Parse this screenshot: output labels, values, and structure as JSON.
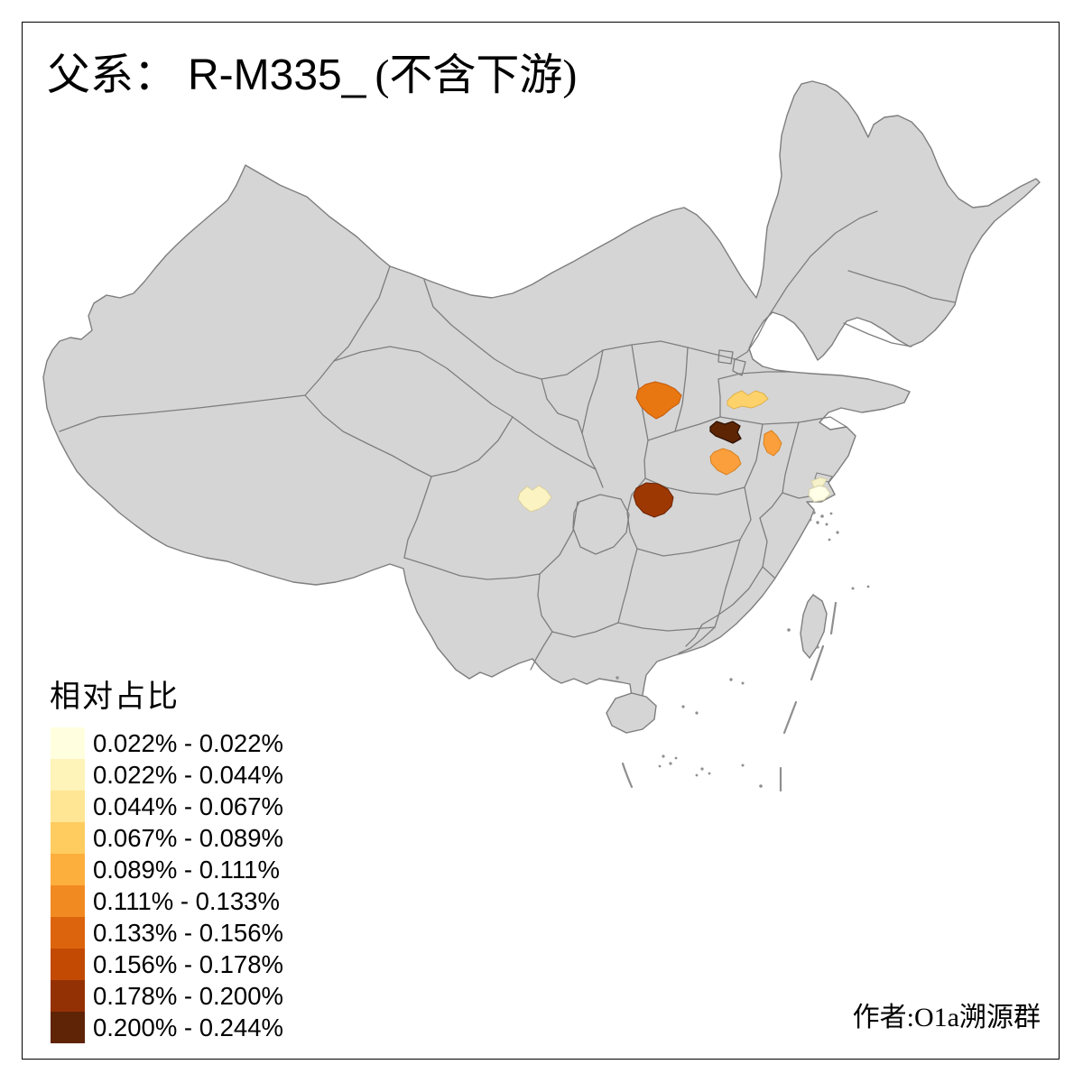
{
  "title": {
    "prefix": "父系：",
    "haplogroup": "R-M335_",
    "suffix": "(不含下游)",
    "full": "父系： R-M335_ (不含下游)"
  },
  "legend": {
    "title": "相对占比",
    "entries": [
      {
        "label": "0.022% - 0.022%",
        "color": "#FFFFE0"
      },
      {
        "label": "0.022% - 0.044%",
        "color": "#FEF3B8"
      },
      {
        "label": "0.044% - 0.067%",
        "color": "#FEE694"
      },
      {
        "label": "0.067% - 0.089%",
        "color": "#FECC5F"
      },
      {
        "label": "0.089% - 0.111%",
        "color": "#FDAF3D"
      },
      {
        "label": "0.111% - 0.133%",
        "color": "#F28A22"
      },
      {
        "label": "0.133% - 0.156%",
        "color": "#DC640D"
      },
      {
        "label": "0.156% - 0.178%",
        "color": "#C24A02"
      },
      {
        "label": "0.178% - 0.200%",
        "color": "#933104"
      },
      {
        "label": "0.200% - 0.244%",
        "color": "#5F2306"
      }
    ]
  },
  "attribution": "作者:O1a溯源群",
  "map": {
    "land_color": "#D5D5D5",
    "border_color": "#7E7E7E",
    "sea_color": "#FFFFFF"
  },
  "chart_data": {
    "type": "choropleth_map",
    "title": "父系： R-M335_ (不含下游)",
    "legend_title": "相对占比",
    "value_kind": "relative frequency bins",
    "classes": [
      "0.022% - 0.022%",
      "0.022% - 0.044%",
      "0.044% - 0.067%",
      "0.067% - 0.089%",
      "0.089% - 0.111%",
      "0.111% - 0.133%",
      "0.133% - 0.156%",
      "0.156% - 0.178%",
      "0.178% - 0.200%",
      "0.200% - 0.244%"
    ],
    "class_colors": [
      "#FFFFE0",
      "#FEF3B8",
      "#FEE694",
      "#FECC5F",
      "#FDAF3D",
      "#F28A22",
      "#DC640D",
      "#C24A02",
      "#933104",
      "#5F2306"
    ],
    "regions": [
      {
        "id": "shanxi-southwest",
        "value_range": "0.133% - 0.156%",
        "color": "#E87711"
      },
      {
        "id": "shandong-west",
        "value_range": "0.067% - 0.089%",
        "color": "#FDD26A"
      },
      {
        "id": "henan-north",
        "value_range": "0.200% - 0.244%",
        "color": "#5E2505"
      },
      {
        "id": "anhui-north",
        "value_range": "0.089% - 0.111%",
        "color": "#FA9F3B"
      },
      {
        "id": "henan-central",
        "value_range": "0.089% - 0.111%",
        "color": "#FA9F3B"
      },
      {
        "id": "hubei-northwest",
        "value_range": "0.178% - 0.200%",
        "color": "#9E3803"
      },
      {
        "id": "chengdu-sichuan",
        "value_range": "0.022% - 0.044%",
        "color": "#FCF3C2"
      },
      {
        "id": "jiangsu-south-sliver",
        "value_range": "0.022% - 0.044%",
        "color": "#F6F1C8"
      },
      {
        "id": "shanghai",
        "value_range": "0.022% - 0.022%",
        "color": "#FFFEE6"
      }
    ],
    "attribution": "作者:O1a溯源群"
  }
}
